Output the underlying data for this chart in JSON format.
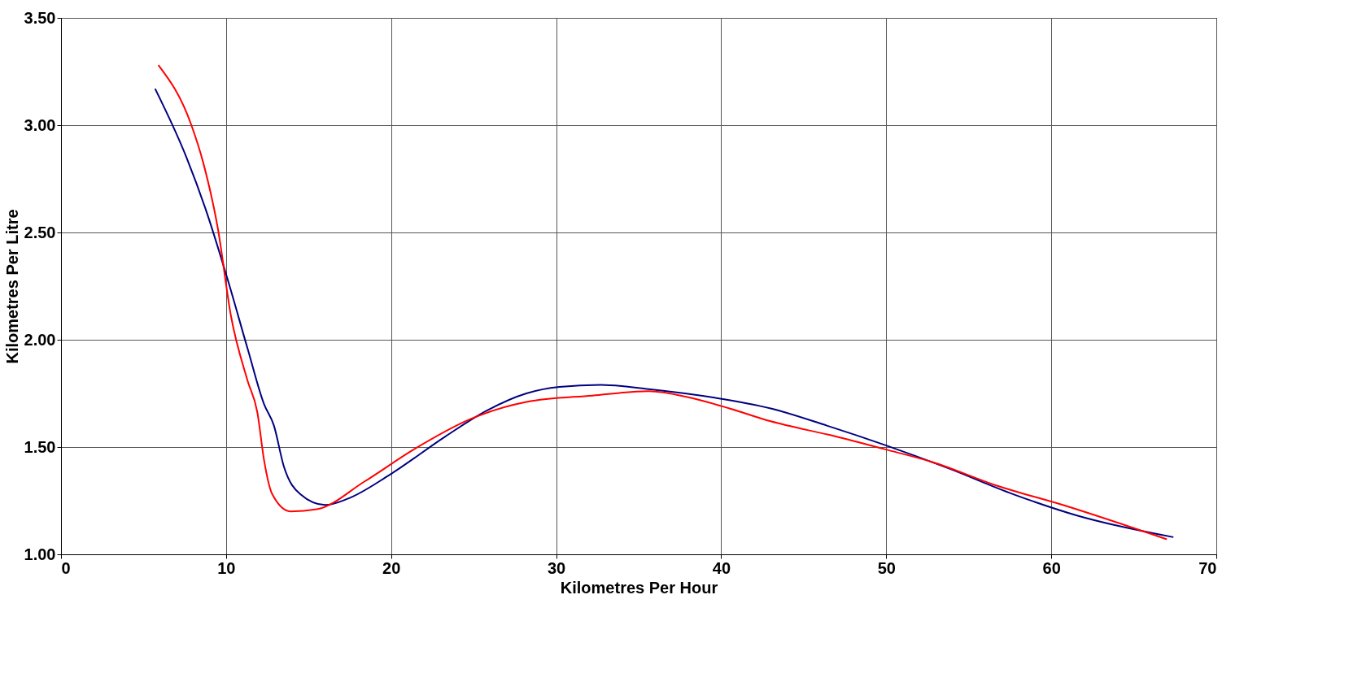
{
  "chart_data": {
    "type": "line",
    "xlabel": "Kilometres Per Hour",
    "ylabel": "Kilometres Per Litre",
    "xlim": [
      0,
      70
    ],
    "xticks": [
      0,
      10,
      20,
      30,
      40,
      50,
      60,
      70
    ],
    "ylim": [
      1,
      3.5
    ],
    "yticks": [
      {
        "value": 1,
        "label": "1.00"
      },
      {
        "value": 1.5,
        "label": "1.50"
      },
      {
        "value": 2,
        "label": "2.00"
      },
      {
        "value": 2.5,
        "label": "2.50"
      },
      {
        "value": 3,
        "label": "3.00"
      },
      {
        "value": 3.5,
        "label": "3.50"
      }
    ],
    "grid": true,
    "marker": "none",
    "line_style": "solid",
    "series": [
      {
        "color": "#000080",
        "x": [
          5.7,
          7.6,
          8.8,
          10.1,
          11.3,
          12.3,
          12.9,
          13.5,
          14.5,
          16.0,
          17.4,
          19.9,
          23.3,
          25.8,
          28.2,
          30.2,
          32.7,
          35.6,
          39.6,
          43.0,
          46.4,
          49.9,
          53.8,
          57.7,
          61.6,
          67.4
        ],
        "values": [
          3.17,
          2.85,
          2.6,
          2.28,
          1.96,
          1.7,
          1.6,
          1.41,
          1.28,
          1.23,
          1.26,
          1.37,
          1.55,
          1.67,
          1.75,
          1.78,
          1.79,
          1.77,
          1.73,
          1.68,
          1.6,
          1.51,
          1.4,
          1.28,
          1.18,
          1.08
        ]
      },
      {
        "color": "#ff0000",
        "x": [
          5.9,
          7.9,
          8.6,
          9.5,
          10.3,
          11.3,
          11.9,
          12.3,
          12.8,
          13.9,
          15.5,
          18.4,
          21.4,
          24.8,
          28.2,
          32.2,
          35.6,
          38.1,
          40.5,
          43.0,
          46.9,
          49.9,
          52.8,
          56.7,
          60.7,
          67.0
        ],
        "values": [
          3.28,
          3.0,
          2.83,
          2.52,
          2.11,
          1.81,
          1.66,
          1.44,
          1.28,
          1.2,
          1.21,
          1.34,
          1.49,
          1.63,
          1.71,
          1.74,
          1.76,
          1.73,
          1.68,
          1.62,
          1.55,
          1.49,
          1.43,
          1.32,
          1.23,
          1.07
        ]
      }
    ]
  }
}
